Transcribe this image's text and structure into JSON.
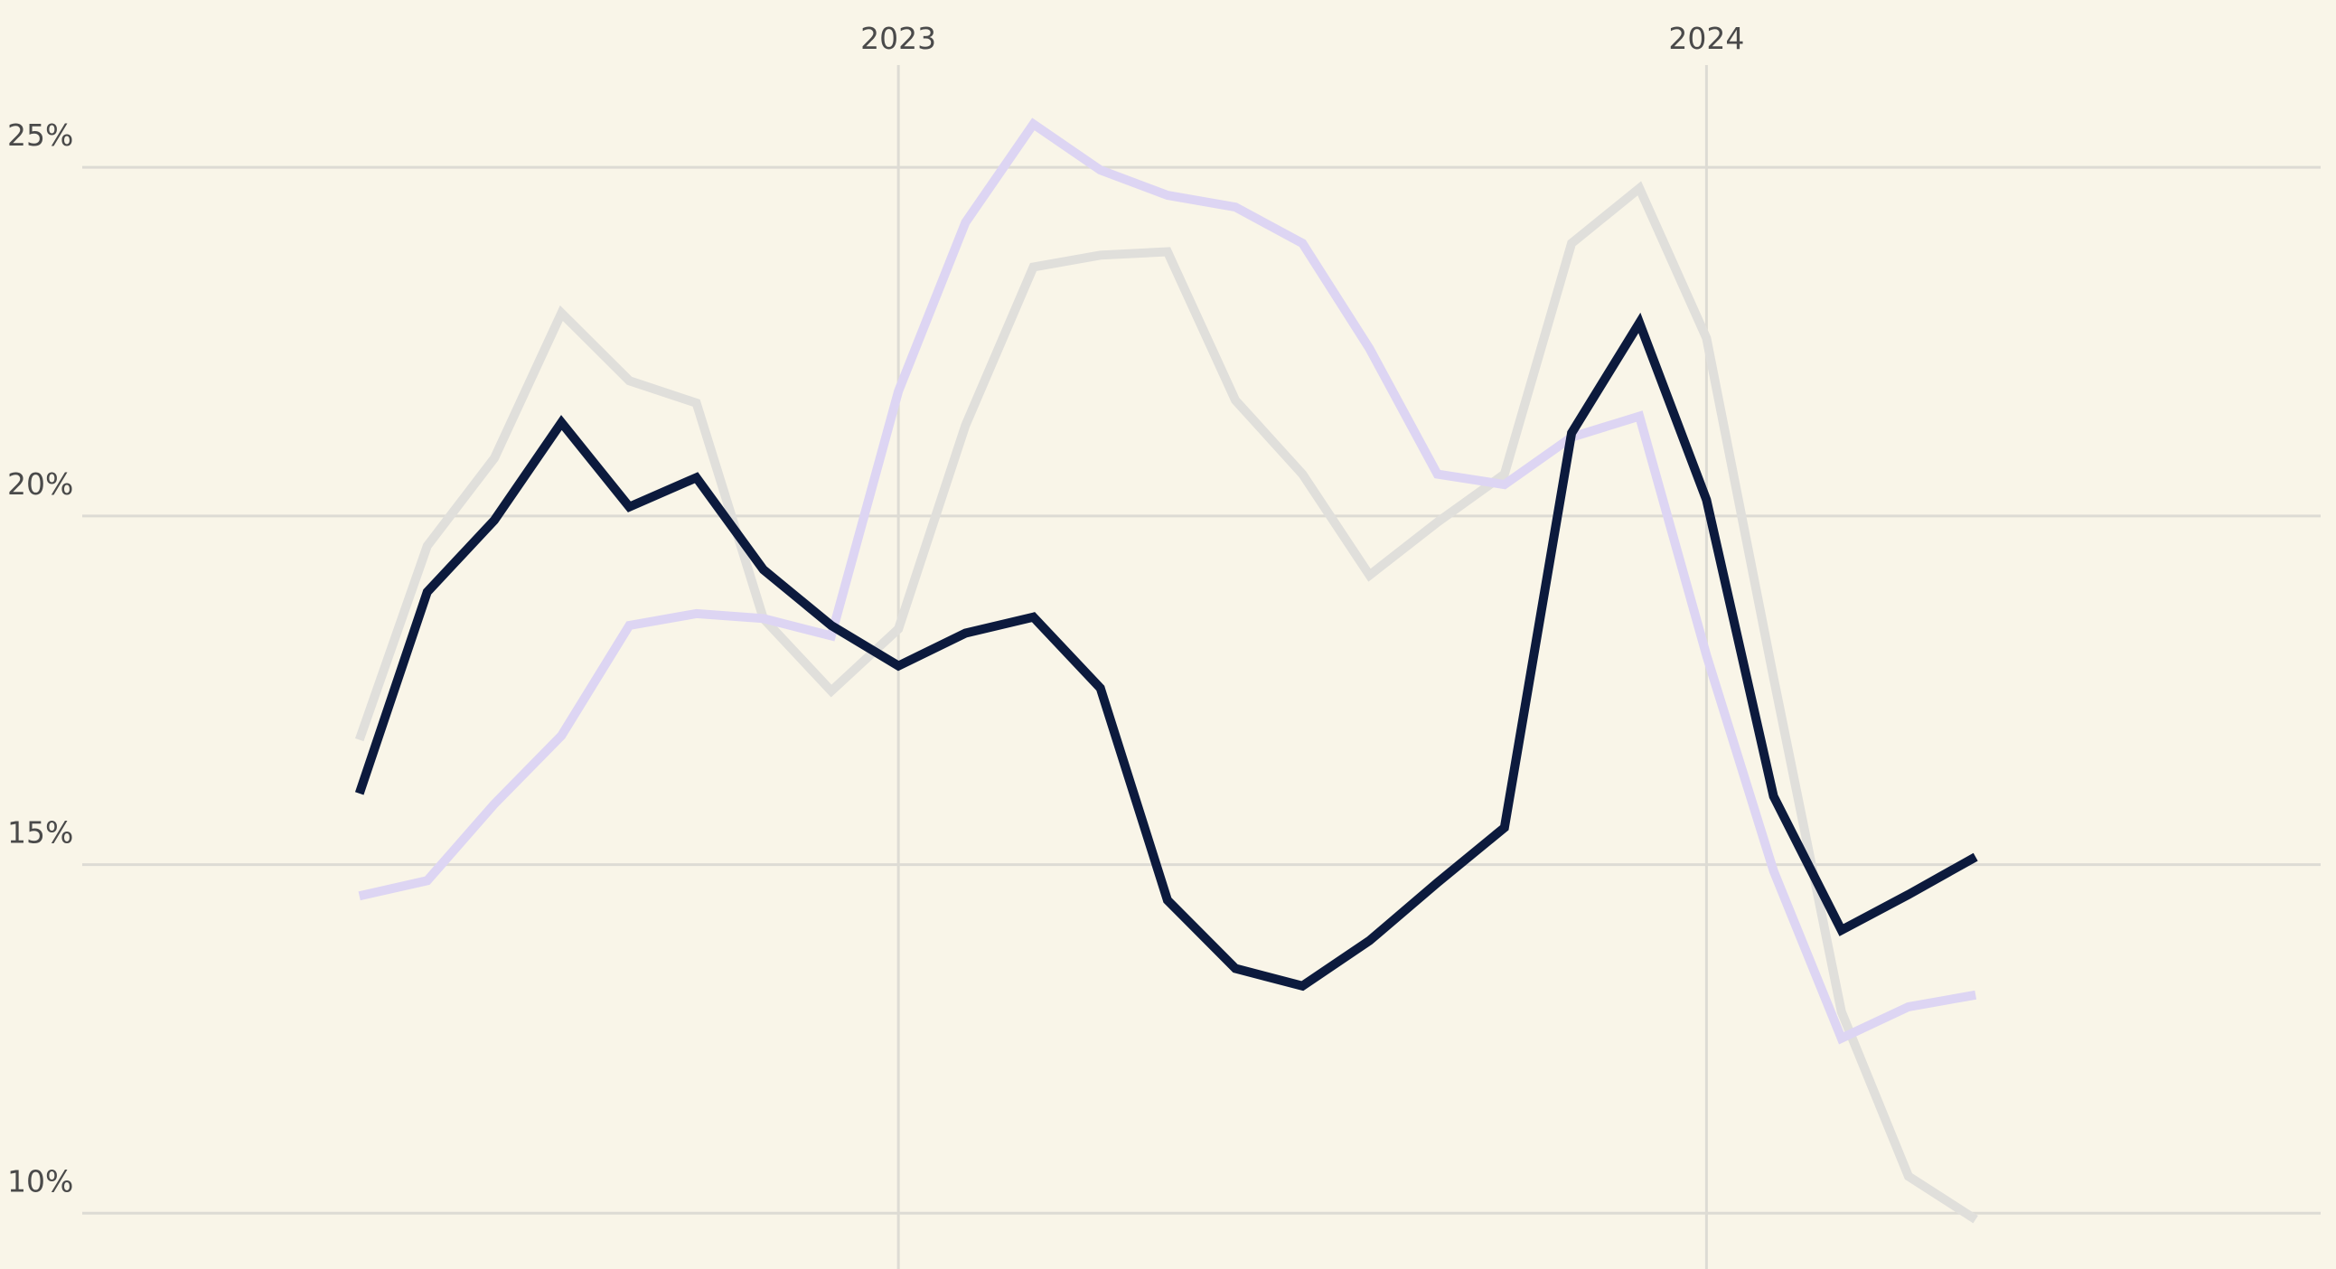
{
  "chart_data": {
    "type": "line",
    "x": [
      2022.333,
      2022.417,
      2022.5,
      2022.583,
      2022.667,
      2022.75,
      2022.833,
      2022.917,
      2023,
      2023.083,
      2023.167,
      2023.25,
      2023.333,
      2023.417,
      2023.5,
      2023.583,
      2023.667,
      2023.75,
      2023.833,
      2023.917,
      2024,
      2024.083,
      2024.167,
      2024.25,
      2024.333
    ],
    "series": [
      {
        "color": "#e0dfdb",
        "values": [
          16.79,
          19.57,
          20.83,
          22.91,
          21.94,
          21.62,
          18.53,
          17.49,
          18.38,
          21.3,
          23.57,
          23.74,
          23.79,
          21.66,
          20.6,
          19.15,
          19.91,
          20.6,
          23.91,
          24.7,
          22.55,
          17.68,
          12.89,
          10.53,
          9.91
        ]
      },
      {
        "color": "#ddd5f3",
        "values": [
          14.55,
          14.77,
          15.87,
          16.85,
          18.43,
          18.6,
          18.53,
          18.28,
          21.79,
          24.21,
          25.62,
          24.96,
          24.6,
          24.43,
          23.91,
          22.4,
          20.6,
          20.45,
          21.13,
          21.43,
          18.0,
          14.91,
          12.51,
          12.96,
          13.13
        ]
      },
      {
        "color": "#0c1a3d",
        "values": [
          16.02,
          18.91,
          19.94,
          21.34,
          20.13,
          20.55,
          19.23,
          18.43,
          17.85,
          18.32,
          18.55,
          17.53,
          14.49,
          13.51,
          13.26,
          13.91,
          14.74,
          15.53,
          21.19,
          22.77,
          20.23,
          15.98,
          14.06,
          14.57,
          15.11
        ]
      }
    ],
    "xlim": [
      2021.99,
      2024.76
    ],
    "xticks": [
      2023,
      2024
    ],
    "ylim": [
      9.2,
      27.4
    ],
    "yticks": [
      {
        "value": 10,
        "label": "10%"
      },
      {
        "value": 15,
        "label": "15%"
      },
      {
        "value": 20,
        "label": "20%"
      },
      {
        "value": 25,
        "label": "25%"
      }
    ],
    "grid": true
  }
}
